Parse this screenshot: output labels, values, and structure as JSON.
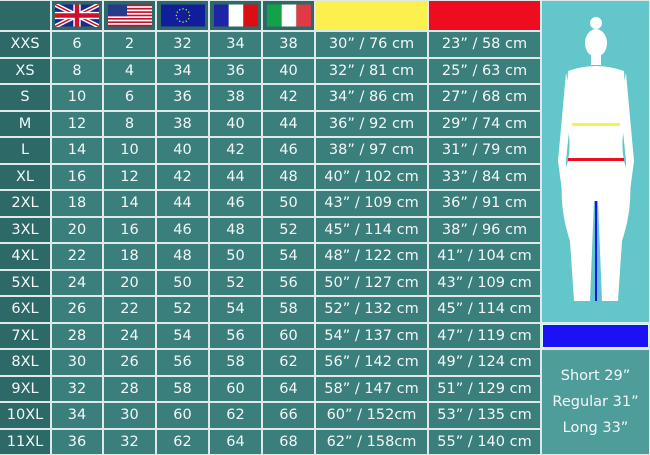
{
  "header": {
    "flags": [
      {
        "country": "UK",
        "icon": "uk-flag-icon"
      },
      {
        "country": "US",
        "icon": "us-flag-icon"
      },
      {
        "country": "EU",
        "icon": "eu-flag-icon"
      },
      {
        "country": "France",
        "icon": "france-flag-icon"
      },
      {
        "country": "Italy",
        "icon": "italy-flag-icon"
      }
    ],
    "measure_colors": {
      "hip": "#fbf04d",
      "waist": "#ee0d1e",
      "inseam": "#1c10f5"
    }
  },
  "rows": [
    {
      "size": "XXS",
      "uk": "6",
      "us": "2",
      "eu": "32",
      "fr": "34",
      "it": "38",
      "hip": "30” / 76 cm",
      "waist": "23” / 58 cm"
    },
    {
      "size": "XS",
      "uk": "8",
      "us": "4",
      "eu": "34",
      "fr": "36",
      "it": "40",
      "hip": "32” / 81 cm",
      "waist": "25” / 63 cm"
    },
    {
      "size": "S",
      "uk": "10",
      "us": "6",
      "eu": "36",
      "fr": "38",
      "it": "42",
      "hip": "34” / 86 cm",
      "waist": "27” / 68 cm"
    },
    {
      "size": "M",
      "uk": "12",
      "us": "8",
      "eu": "38",
      "fr": "40",
      "it": "44",
      "hip": "36” / 92 cm",
      "waist": "29” / 74 cm"
    },
    {
      "size": "L",
      "uk": "14",
      "us": "10",
      "eu": "40",
      "fr": "42",
      "it": "46",
      "hip": "38” / 97 cm",
      "waist": "31” / 79 cm"
    },
    {
      "size": "XL",
      "uk": "16",
      "us": "12",
      "eu": "42",
      "fr": "44",
      "it": "48",
      "hip": "40” / 102 cm",
      "waist": "33” / 84 cm"
    },
    {
      "size": "2XL",
      "uk": "18",
      "us": "14",
      "eu": "44",
      "fr": "46",
      "it": "50",
      "hip": "43” / 109 cm",
      "waist": "36” / 91 cm"
    },
    {
      "size": "3XL",
      "uk": "20",
      "us": "16",
      "eu": "46",
      "fr": "48",
      "it": "52",
      "hip": "45” / 114 cm",
      "waist": "38” / 96 cm"
    },
    {
      "size": "4XL",
      "uk": "22",
      "us": "18",
      "eu": "48",
      "fr": "50",
      "it": "54",
      "hip": "48” / 122 cm",
      "waist": "41” / 104 cm"
    },
    {
      "size": "5XL",
      "uk": "24",
      "us": "20",
      "eu": "50",
      "fr": "52",
      "it": "56",
      "hip": "50” / 127 cm",
      "waist": "43” / 109 cm"
    },
    {
      "size": "6XL",
      "uk": "26",
      "us": "22",
      "eu": "52",
      "fr": "54",
      "it": "58",
      "hip": "52” / 132 cm",
      "waist": "45” / 114 cm"
    },
    {
      "size": "7XL",
      "uk": "28",
      "us": "24",
      "eu": "54",
      "fr": "56",
      "it": "60",
      "hip": "54” / 137 cm",
      "waist": "47” / 119 cm"
    },
    {
      "size": "8XL",
      "uk": "30",
      "us": "26",
      "eu": "56",
      "fr": "58",
      "it": "62",
      "hip": "56” / 142 cm",
      "waist": "49” / 124 cm"
    },
    {
      "size": "9XL",
      "uk": "32",
      "us": "28",
      "eu": "58",
      "fr": "60",
      "it": "64",
      "hip": "58” / 147 cm",
      "waist": "51” / 129 cm"
    },
    {
      "size": "10XL",
      "uk": "34",
      "us": "30",
      "eu": "60",
      "fr": "62",
      "it": "66",
      "hip": "60” / 152cm",
      "waist": "53” / 135 cm"
    },
    {
      "size": "11XL",
      "uk": "36",
      "us": "32",
      "eu": "62",
      "fr": "64",
      "it": "68",
      "hip": "62” / 158cm",
      "waist": "55” / 140 cm"
    }
  ],
  "inseam": {
    "short": "Short 29”",
    "regular": "Regular 31”",
    "long": "Long 33”"
  }
}
